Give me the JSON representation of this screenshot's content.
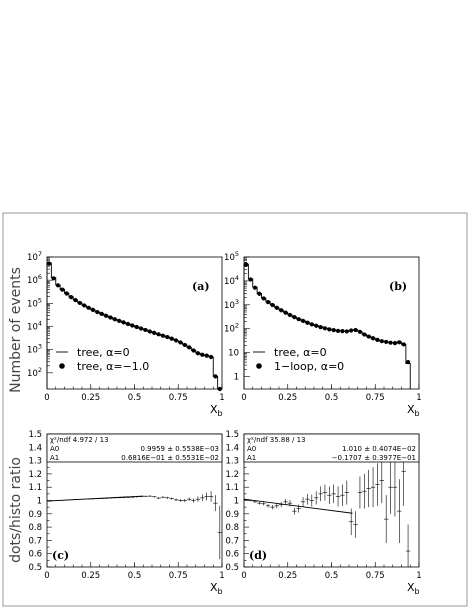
{
  "figure": {
    "y_axis_label_top": "Number of events",
    "y_axis_label_bottom": "dots/histo ratio"
  },
  "chart_data": [
    {
      "id": "a",
      "type": "line",
      "panel_label": "(a)",
      "xlabel": "X_b",
      "xlim": [
        0,
        1
      ],
      "ylim": [
        20,
        10000000
      ],
      "yscale": "log",
      "xticks": [
        "0",
        "0.25",
        "0.5",
        "0.75",
        "1"
      ],
      "yticks": [
        {
          "v": 100,
          "base": "10",
          "exp": "2"
        },
        {
          "v": 1000,
          "base": "10",
          "exp": "3"
        },
        {
          "v": 10000,
          "base": "10",
          "exp": "4"
        },
        {
          "v": 100000,
          "base": "10",
          "exp": "5"
        },
        {
          "v": 1000000,
          "base": "10",
          "exp": "6"
        },
        {
          "v": 10000000,
          "base": "10",
          "exp": "7"
        }
      ],
      "legend": [
        {
          "text": "tree, α=0",
          "marker": "line"
        },
        {
          "text": "tree, α=−1.0",
          "marker": "dot"
        }
      ],
      "x": [
        0.0125,
        0.0375,
        0.0625,
        0.0875,
        0.1125,
        0.1375,
        0.1625,
        0.1875,
        0.2125,
        0.2375,
        0.2625,
        0.2875,
        0.3125,
        0.3375,
        0.3625,
        0.3875,
        0.4125,
        0.4375,
        0.4625,
        0.4875,
        0.5125,
        0.5375,
        0.5625,
        0.5875,
        0.6125,
        0.6375,
        0.6625,
        0.6875,
        0.7125,
        0.7375,
        0.7625,
        0.7875,
        0.8125,
        0.8375,
        0.8625,
        0.8875,
        0.9125,
        0.9375,
        0.9625,
        0.9875
      ],
      "histogram": [
        5500000,
        1300000,
        620000,
        400000,
        270000,
        190000,
        140000,
        105000,
        82000,
        65000,
        52000,
        42000,
        35000,
        29000,
        24500,
        20500,
        17500,
        15000,
        12800,
        11000,
        9500,
        8200,
        7100,
        6100,
        5300,
        4600,
        4000,
        3500,
        3000,
        2500,
        2050,
        1600,
        1250,
        920,
        700,
        600,
        550,
        480,
        70,
        20
      ],
      "dots": [
        5200000,
        1200000,
        600000,
        390000,
        265000,
        185000,
        138000,
        104000,
        81000,
        64000,
        52000,
        42000,
        35000,
        29000,
        24500,
        20500,
        17500,
        15000,
        12800,
        11000,
        9500,
        8200,
        7100,
        6100,
        5300,
        4600,
        4000,
        3500,
        3000,
        2500,
        2050,
        1600,
        1250,
        920,
        700,
        600,
        550,
        480,
        70,
        20
      ]
    },
    {
      "id": "b",
      "type": "line",
      "panel_label": "(b)",
      "xlabel": "X_b",
      "xlim": [
        0,
        1
      ],
      "ylim": [
        0.3,
        100000
      ],
      "yscale": "log",
      "xticks": [
        "0",
        "0.25",
        "0.5",
        "0.75",
        "1"
      ],
      "yticks": [
        {
          "v": 1,
          "base": "1",
          "exp": ""
        },
        {
          "v": 10,
          "base": "10",
          "exp": ""
        },
        {
          "v": 100,
          "base": "10",
          "exp": "2"
        },
        {
          "v": 1000,
          "base": "10",
          "exp": "3"
        },
        {
          "v": 10000,
          "base": "10",
          "exp": "4"
        },
        {
          "v": 100000,
          "base": "10",
          "exp": "5"
        }
      ],
      "legend": [
        {
          "text": "tree, α=0",
          "marker": "line"
        },
        {
          "text": "1−loop, α=0",
          "marker": "dot"
        }
      ],
      "x": [
        0.0125,
        0.0375,
        0.0625,
        0.0875,
        0.1125,
        0.1375,
        0.1625,
        0.1875,
        0.2125,
        0.2375,
        0.2625,
        0.2875,
        0.3125,
        0.3375,
        0.3625,
        0.3875,
        0.4125,
        0.4375,
        0.4625,
        0.4875,
        0.5125,
        0.5375,
        0.5625,
        0.5875,
        0.6125,
        0.6375,
        0.6625,
        0.6875,
        0.7125,
        0.7375,
        0.7625,
        0.7875,
        0.8125,
        0.8375,
        0.8625,
        0.8875,
        0.9125,
        0.9375
      ],
      "histogram": [
        50000,
        12000,
        5500,
        3000,
        1900,
        1350,
        1000,
        760,
        600,
        480,
        380,
        310,
        255,
        215,
        180,
        155,
        135,
        118,
        105,
        95,
        88,
        82,
        80,
        78,
        85,
        90,
        75,
        58,
        48,
        40,
        34,
        30,
        28,
        26,
        25,
        28,
        22,
        3.5
      ],
      "dots": [
        48000,
        11500,
        5200,
        2900,
        1850,
        1300,
        980,
        750,
        590,
        470,
        375,
        305,
        250,
        212,
        178,
        152,
        133,
        116,
        104,
        94,
        87,
        81,
        79,
        77,
        84,
        88,
        74,
        57,
        47,
        40,
        34,
        30,
        28,
        26,
        25,
        27,
        22,
        4
      ]
    },
    {
      "id": "c",
      "type": "scatter",
      "panel_label": "(c)",
      "xlabel": "X_b",
      "xlim": [
        0,
        1
      ],
      "ylim": [
        0.5,
        1.5
      ],
      "xticks": [
        "0",
        "0.25",
        "0.5",
        "0.75",
        "1"
      ],
      "yticks": [
        "0.5",
        "0.6",
        "0.7",
        "0.8",
        "0.9",
        "1",
        "1.1",
        "1.2",
        "1.3",
        "1.4",
        "1.5"
      ],
      "stats": {
        "chi2": "χ²/ndf  4.972   /    13",
        "A0": {
          "label": "A0",
          "value": "0.9959  ±   0.5538E−03"
        },
        "A1": {
          "label": "A1",
          "value": "0.6816E−01  ±   0.5531E−02"
        }
      },
      "fit": {
        "a0": 0.9959,
        "a1": 0.06816,
        "xrange": [
          0,
          0.55
        ]
      },
      "x": [
        0.0125,
        0.0375,
        0.0625,
        0.0875,
        0.1125,
        0.1375,
        0.1625,
        0.1875,
        0.2125,
        0.2375,
        0.2625,
        0.2875,
        0.3125,
        0.3375,
        0.3625,
        0.3875,
        0.4125,
        0.4375,
        0.4625,
        0.4875,
        0.5125,
        0.5375,
        0.5625,
        0.5875,
        0.6125,
        0.6375,
        0.6625,
        0.6875,
        0.7125,
        0.7375,
        0.7625,
        0.7875,
        0.8125,
        0.8375,
        0.8625,
        0.8875,
        0.9125,
        0.9375,
        0.9625,
        0.9875
      ],
      "y": [
        0.995,
        0.998,
        1.0,
        1.001,
        1.003,
        1.005,
        1.007,
        1.009,
        1.01,
        1.011,
        1.012,
        1.014,
        1.015,
        1.016,
        1.018,
        1.02,
        1.021,
        1.022,
        1.023,
        1.025,
        1.028,
        1.03,
        1.032,
        1.033,
        1.028,
        1.018,
        1.025,
        1.02,
        1.015,
        1.005,
        1.0,
        1.0,
        1.01,
        1.0,
        1.01,
        1.02,
        1.03,
        1.03,
        0.98,
        0.76
      ],
      "yerr": [
        0.002,
        0.002,
        0.002,
        0.002,
        0.002,
        0.002,
        0.002,
        0.002,
        0.002,
        0.002,
        0.003,
        0.003,
        0.003,
        0.003,
        0.003,
        0.004,
        0.004,
        0.004,
        0.004,
        0.005,
        0.005,
        0.005,
        0.006,
        0.006,
        0.006,
        0.007,
        0.007,
        0.008,
        0.008,
        0.009,
        0.01,
        0.012,
        0.013,
        0.016,
        0.02,
        0.025,
        0.03,
        0.04,
        0.06,
        0.2
      ]
    },
    {
      "id": "d",
      "type": "scatter",
      "panel_label": "(d)",
      "xlabel": "X_b",
      "xlim": [
        0,
        1
      ],
      "ylim": [
        0.5,
        1.5
      ],
      "xticks": [
        "0",
        "0.25",
        "0.5",
        "0.75",
        "1"
      ],
      "yticks": [
        "0.5",
        "0.6",
        "0.7",
        "0.8",
        "0.9",
        "1",
        "1.1",
        "1.2",
        "1.3",
        "1.4",
        "1.5"
      ],
      "stats": {
        "chi2": "χ²/ndf  35.88   /    13",
        "A0": {
          "label": "A0",
          "value": "1.010  ±   0.4074E−02"
        },
        "A1": {
          "label": "A1",
          "value": "−0.1707  ±   0.3977E−01"
        }
      },
      "fit": {
        "a0": 1.01,
        "a1": -0.1707,
        "xrange": [
          0,
          0.62
        ]
      },
      "x": [
        0.0125,
        0.0375,
        0.0625,
        0.0875,
        0.1125,
        0.1375,
        0.1625,
        0.1875,
        0.2125,
        0.2375,
        0.2625,
        0.2875,
        0.3125,
        0.3375,
        0.3625,
        0.3875,
        0.4125,
        0.4375,
        0.4625,
        0.4875,
        0.5125,
        0.5375,
        0.5625,
        0.5875,
        0.6125,
        0.6375,
        0.6625,
        0.6875,
        0.7125,
        0.7375,
        0.7625,
        0.7875,
        0.8125,
        0.8375,
        0.8625,
        0.8875,
        0.9125,
        0.9375
      ],
      "y": [
        1.005,
        1.0,
        0.99,
        0.98,
        0.975,
        0.96,
        0.95,
        0.96,
        0.97,
        0.99,
        0.98,
        0.92,
        0.94,
        0.99,
        1.01,
        1.0,
        1.02,
        1.05,
        1.06,
        1.04,
        1.05,
        1.03,
        1.04,
        1.06,
        0.84,
        0.82,
        1.06,
        1.07,
        1.09,
        1.1,
        1.12,
        1.15,
        0.86,
        1.1,
        1.1,
        0.92,
        1.22,
        0.62
      ],
      "yerr": [
        0.005,
        0.006,
        0.008,
        0.01,
        0.012,
        0.014,
        0.016,
        0.018,
        0.02,
        0.022,
        0.024,
        0.026,
        0.03,
        0.035,
        0.04,
        0.045,
        0.05,
        0.055,
        0.06,
        0.065,
        0.07,
        0.075,
        0.08,
        0.09,
        0.1,
        0.1,
        0.12,
        0.13,
        0.14,
        0.15,
        0.16,
        0.17,
        0.18,
        0.2,
        0.22,
        0.24,
        0.26,
        0.2
      ]
    }
  ]
}
